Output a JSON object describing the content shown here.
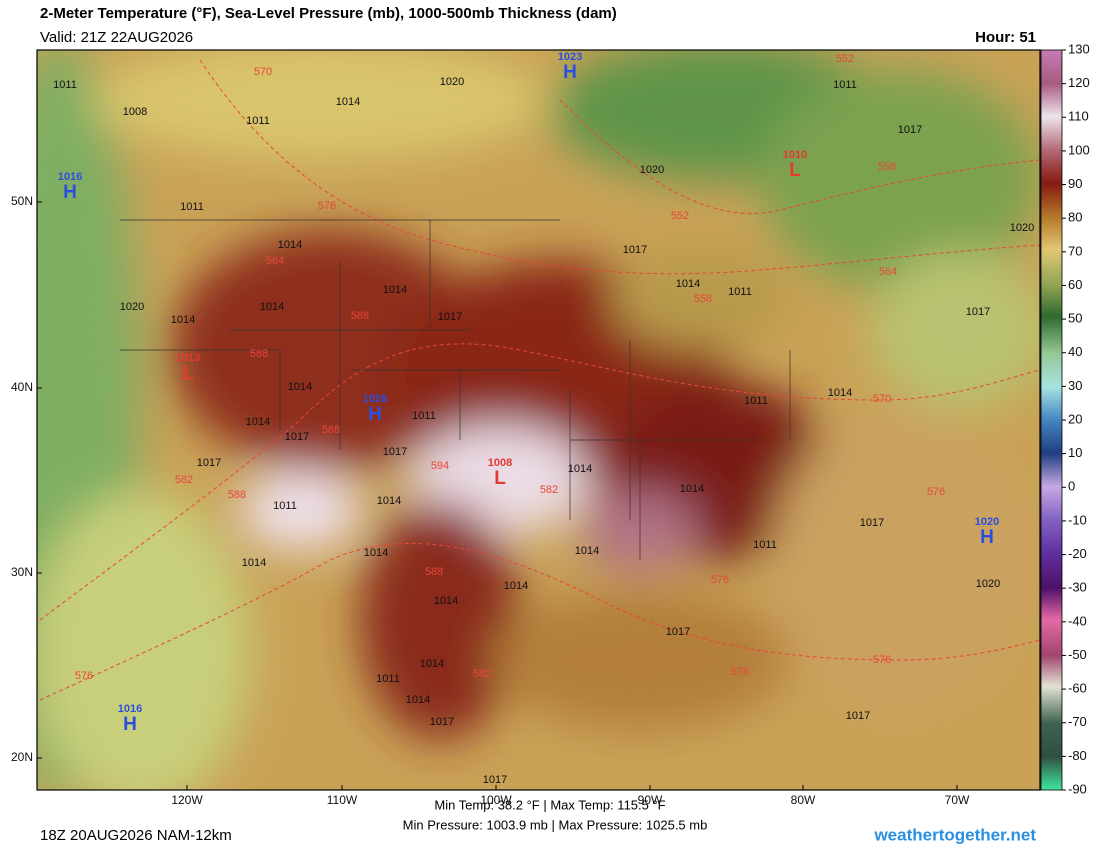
{
  "header": {
    "title": "2-Meter Temperature (°F), Sea-Level Pressure (mb), 1000-500mb Thickness (dam)",
    "valid": "Valid: 21Z 22AUG2026",
    "hour": "Hour: 51"
  },
  "map": {
    "lat_labels": [
      "50N",
      "40N",
      "30N",
      "20N"
    ],
    "lon_labels": [
      "120W",
      "110W",
      "100W",
      "90W",
      "80W",
      "70W"
    ],
    "centers": [
      {
        "symbol": "H",
        "value": "1023"
      },
      {
        "symbol": "L",
        "value": "1010"
      },
      {
        "symbol": "H",
        "value": "1016"
      },
      {
        "symbol": "L",
        "value": "1013"
      },
      {
        "symbol": "H",
        "value": "1026"
      },
      {
        "symbol": "L",
        "value": "1008"
      },
      {
        "symbol": "H",
        "value": "1020"
      },
      {
        "symbol": "H",
        "value": "1016"
      }
    ],
    "isobar_labels": [
      "1011",
      "1008",
      "1011",
      "1014",
      "1020",
      "1011",
      "1017",
      "1020",
      "1011",
      "1014",
      "1017",
      "1020",
      "1020",
      "1014",
      "1014",
      "1014",
      "1017",
      "1014",
      "1011",
      "1017",
      "1014",
      "1011",
      "1014",
      "1017",
      "1017",
      "1017",
      "1014",
      "1011",
      "1014",
      "1014",
      "1014",
      "1014",
      "1014",
      "1014",
      "1014",
      "1011",
      "1017",
      "1020",
      "1014",
      "1011",
      "1017",
      "1014",
      "1017",
      "1017",
      "1017",
      "1011",
      "1014"
    ],
    "thickness_labels": [
      "570",
      "552",
      "558",
      "552",
      "576",
      "564",
      "564",
      "558",
      "588",
      "588",
      "570",
      "588",
      "594",
      "582",
      "582",
      "588",
      "576",
      "588",
      "576",
      "582",
      "576",
      "576",
      "576"
    ]
  },
  "colorbar": {
    "ticks": [
      130,
      120,
      110,
      100,
      90,
      80,
      70,
      60,
      50,
      40,
      30,
      20,
      10,
      0,
      -10,
      -20,
      -30,
      -40,
      -50,
      -60,
      -70,
      -80,
      -90
    ]
  },
  "footer": {
    "run": "18Z 20AUG2026 NAM-12km",
    "temps": "Min Temp:  38.2 °F | Max Temp: 115.5 °F",
    "pressures": "Min Pressure: 1003.9 mb | Max Pressure: 1025.5 mb",
    "site": "weathertogether.net"
  }
}
